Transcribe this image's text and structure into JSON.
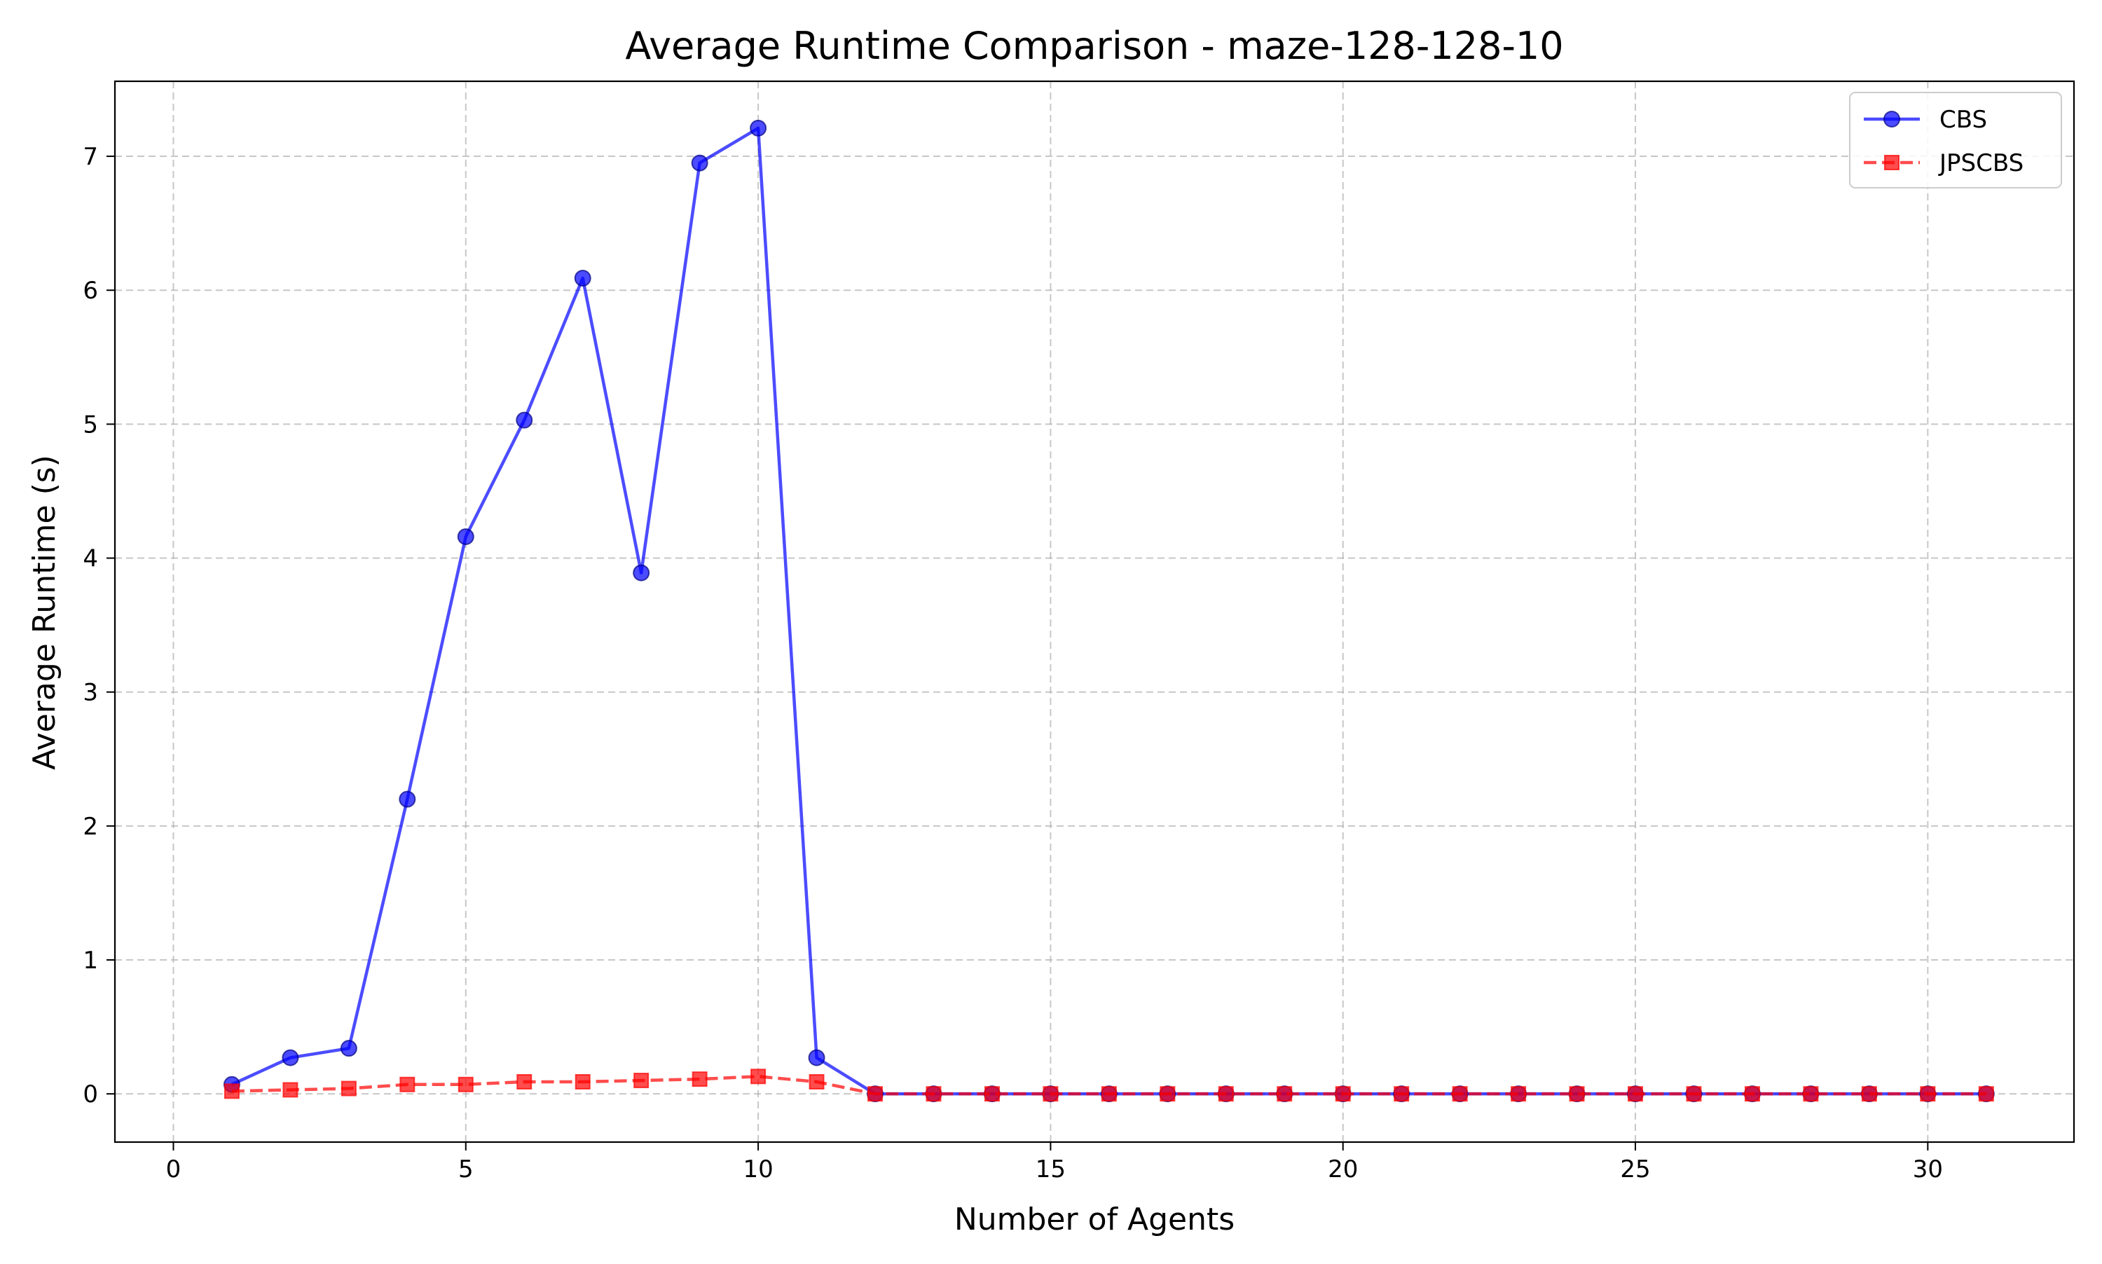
{
  "chart_data": {
    "type": "line",
    "title": "Average Runtime Comparison - maze-128-128-10",
    "xlabel": "Number of Agents",
    "ylabel": "Average Runtime (s)",
    "xlim": [
      -1,
      32.5
    ],
    "ylim": [
      -0.36,
      7.56
    ],
    "xticks": [
      0,
      5,
      10,
      15,
      20,
      25,
      30
    ],
    "yticks": [
      0,
      1,
      2,
      3,
      4,
      5,
      6,
      7
    ],
    "grid": true,
    "legend_position": "top-right",
    "x": [
      1,
      2,
      3,
      4,
      5,
      6,
      7,
      8,
      9,
      10,
      11,
      12,
      13,
      14,
      15,
      16,
      17,
      18,
      19,
      20,
      21,
      22,
      23,
      24,
      25,
      26,
      27,
      28,
      29,
      30,
      31
    ],
    "series": [
      {
        "name": "CBS",
        "color": "#0000ff",
        "line_style": "solid",
        "marker": "circle",
        "values": [
          0.07,
          0.27,
          0.34,
          2.2,
          4.16,
          5.03,
          6.09,
          3.89,
          6.95,
          7.21,
          0.27,
          0,
          0,
          0,
          0,
          0,
          0,
          0,
          0,
          0,
          0,
          0,
          0,
          0,
          0,
          0,
          0,
          0,
          0,
          0,
          0
        ]
      },
      {
        "name": "JPSCBS",
        "color": "#ff0000",
        "line_style": "dashed",
        "marker": "square",
        "values": [
          0.02,
          0.03,
          0.04,
          0.07,
          0.07,
          0.09,
          0.09,
          0.1,
          0.11,
          0.13,
          0.09,
          0,
          0,
          0,
          0,
          0,
          0,
          0,
          0,
          0,
          0,
          0,
          0,
          0,
          0,
          0,
          0,
          0,
          0,
          0,
          0
        ]
      }
    ]
  }
}
